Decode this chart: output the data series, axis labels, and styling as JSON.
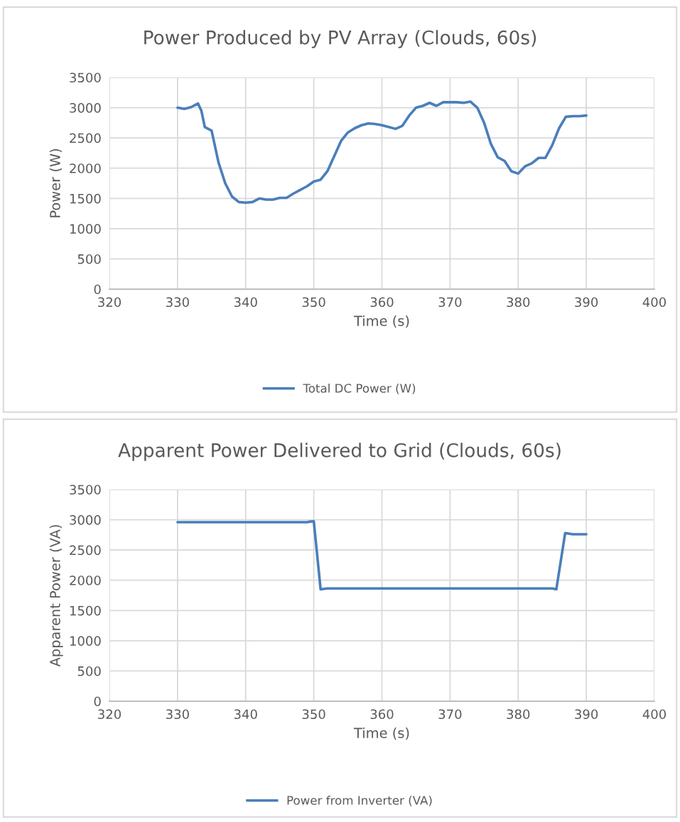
{
  "chart_data": [
    {
      "type": "line",
      "title": "Power Produced by PV Array (Clouds, 60s)",
      "xlabel": "Time (s)",
      "ylabel": "Power (W)",
      "series": [
        {
          "name": "Total DC Power (W)",
          "color": "#4a7ebb",
          "x": [
            330,
            331,
            332,
            333,
            333.5,
            334,
            335,
            336,
            337,
            338,
            339,
            340,
            341,
            342,
            343,
            344,
            345,
            346,
            347,
            348,
            349,
            350,
            351,
            352,
            353,
            354,
            355,
            356,
            357,
            358,
            359,
            360,
            361,
            362,
            363,
            364,
            365,
            366,
            367,
            368,
            369,
            370,
            371,
            372,
            373,
            374,
            375,
            376,
            377,
            378,
            379,
            380,
            381,
            382,
            383,
            384,
            385,
            386,
            387,
            388,
            389,
            390
          ],
          "values": [
            3000,
            2980,
            3010,
            3070,
            2950,
            2680,
            2620,
            2100,
            1750,
            1530,
            1440,
            1430,
            1440,
            1500,
            1480,
            1480,
            1510,
            1510,
            1580,
            1640,
            1700,
            1780,
            1810,
            1950,
            2200,
            2450,
            2590,
            2660,
            2710,
            2740,
            2730,
            2710,
            2680,
            2650,
            2700,
            2870,
            3000,
            3030,
            3080,
            3030,
            3090,
            3090,
            3090,
            3080,
            3100,
            3000,
            2750,
            2400,
            2180,
            2120,
            1950,
            1910,
            2030,
            2080,
            2170,
            2170,
            2380,
            2660,
            2850,
            2860,
            2860,
            2870
          ]
        }
      ],
      "xlim": [
        320,
        400
      ],
      "xticks": [
        320,
        330,
        340,
        350,
        360,
        370,
        380,
        390,
        400
      ],
      "ylim": [
        0,
        3500
      ],
      "yticks": [
        0,
        500,
        1000,
        1500,
        2000,
        2500,
        3000,
        3500
      ],
      "grid": true,
      "legend": "bottom",
      "marker": "none",
      "line_style": "solid"
    },
    {
      "type": "line",
      "title": "Apparent Power Delivered to Grid (Clouds, 60s)",
      "xlabel": "Time (s)",
      "ylabel": "Apparent Power (VA)",
      "series": [
        {
          "name": "Power from Inverter (VA)",
          "color": "#4a7ebb",
          "x": [
            330,
            349,
            349.5,
            350,
            351,
            352,
            385,
            385.6,
            386.9,
            388,
            390
          ],
          "values": [
            2960,
            2960,
            2970,
            2975,
            1850,
            1865,
            1865,
            1850,
            2780,
            2760,
            2760
          ]
        }
      ],
      "xlim": [
        320,
        400
      ],
      "xticks": [
        320,
        330,
        340,
        350,
        360,
        370,
        380,
        390,
        400
      ],
      "ylim": [
        0,
        3500
      ],
      "yticks": [
        0,
        500,
        1000,
        1500,
        2000,
        2500,
        3000,
        3500
      ],
      "grid": true,
      "legend": "bottom",
      "marker": "none",
      "line_style": "solid"
    }
  ]
}
